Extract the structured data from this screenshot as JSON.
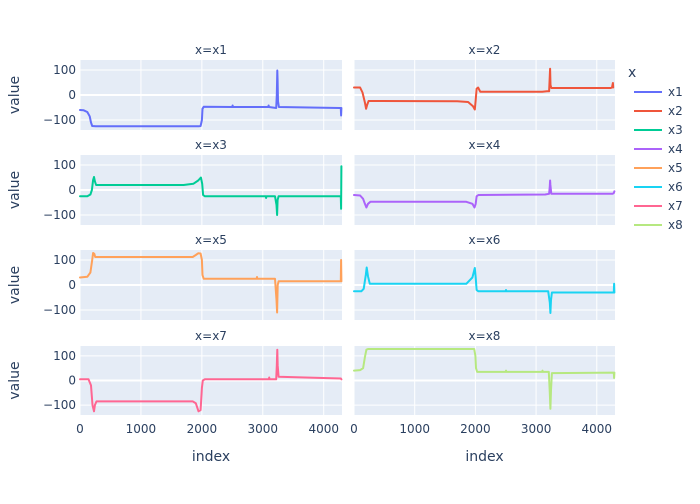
{
  "chart_data": {
    "type": "line",
    "layout": "faceted 4x2 small multiples",
    "x_label": "index",
    "y_label": "value",
    "x_range": [
      0,
      4300
    ],
    "y_range": [
      -140,
      140
    ],
    "x_ticks": [
      0,
      1000,
      2000,
      3000,
      4000
    ],
    "x_tick_labels": [
      "0",
      "1000",
      "2000",
      "3000",
      "4000"
    ],
    "y_ticks": [
      -100,
      0,
      100
    ],
    "y_tick_labels": [
      "−100",
      "0",
      "100"
    ],
    "grid": true,
    "plot_background": "#E5ECF6",
    "legend": {
      "title": "x",
      "position": "right",
      "items": [
        "x1",
        "x2",
        "x3",
        "x4",
        "x5",
        "x6",
        "x7",
        "x8"
      ]
    },
    "series": [
      {
        "name": "x1",
        "facet_title": "x=x1",
        "color": "#636EFA",
        "points": [
          [
            0,
            -60
          ],
          [
            60,
            -61
          ],
          [
            120,
            -68
          ],
          [
            160,
            -85
          ],
          [
            180,
            -110
          ],
          [
            200,
            -124
          ],
          [
            260,
            -125
          ],
          [
            1950,
            -125
          ],
          [
            1980,
            -124
          ],
          [
            2000,
            -100
          ],
          [
            2010,
            -55
          ],
          [
            2030,
            -47
          ],
          [
            2500,
            -48
          ],
          [
            2505,
            -42
          ],
          [
            2510,
            -48
          ],
          [
            3090,
            -48
          ],
          [
            3095,
            -42
          ],
          [
            3100,
            -48
          ],
          [
            3220,
            -52
          ],
          [
            3230,
            0
          ],
          [
            3238,
            98
          ],
          [
            3243,
            60
          ],
          [
            3250,
            -25
          ],
          [
            3265,
            -48
          ],
          [
            4260,
            -52
          ],
          [
            4280,
            -52
          ],
          [
            4285,
            -82
          ],
          [
            4290,
            -52
          ]
        ]
      },
      {
        "name": "x2",
        "facet_title": "x=x2",
        "color": "#EF553B",
        "points": [
          [
            0,
            30
          ],
          [
            100,
            30
          ],
          [
            140,
            10
          ],
          [
            180,
            -30
          ],
          [
            200,
            -55
          ],
          [
            215,
            -40
          ],
          [
            240,
            -24
          ],
          [
            1700,
            -25
          ],
          [
            1880,
            -28
          ],
          [
            1960,
            -45
          ],
          [
            1990,
            -58
          ],
          [
            2005,
            -20
          ],
          [
            2020,
            25
          ],
          [
            2045,
            30
          ],
          [
            2080,
            13
          ],
          [
            3100,
            13
          ],
          [
            3180,
            15
          ],
          [
            3215,
            15
          ],
          [
            3222,
            60
          ],
          [
            3230,
            105
          ],
          [
            3237,
            40
          ],
          [
            3250,
            28
          ],
          [
            4230,
            28
          ],
          [
            4250,
            30
          ],
          [
            4265,
            48
          ],
          [
            4270,
            30
          ]
        ]
      },
      {
        "name": "x3",
        "facet_title": "x=x3",
        "color": "#00CC96",
        "points": [
          [
            0,
            -25
          ],
          [
            120,
            -25
          ],
          [
            170,
            -18
          ],
          [
            195,
            0
          ],
          [
            215,
            40
          ],
          [
            230,
            52
          ],
          [
            245,
            35
          ],
          [
            265,
            20
          ],
          [
            1700,
            20
          ],
          [
            1860,
            25
          ],
          [
            1940,
            38
          ],
          [
            1985,
            50
          ],
          [
            2005,
            25
          ],
          [
            2020,
            -20
          ],
          [
            2050,
            -25
          ],
          [
            3050,
            -25
          ],
          [
            3055,
            -32
          ],
          [
            3060,
            -25
          ],
          [
            3200,
            -25
          ],
          [
            3225,
            -60
          ],
          [
            3235,
            -100
          ],
          [
            3243,
            -40
          ],
          [
            3260,
            -25
          ],
          [
            4280,
            -25
          ],
          [
            4285,
            -75
          ],
          [
            4290,
            95
          ]
        ]
      },
      {
        "name": "x4",
        "facet_title": "x=x4",
        "color": "#AB63FA",
        "points": [
          [
            0,
            -20
          ],
          [
            100,
            -22
          ],
          [
            150,
            -35
          ],
          [
            180,
            -55
          ],
          [
            205,
            -70
          ],
          [
            230,
            -55
          ],
          [
            270,
            -47
          ],
          [
            1850,
            -47
          ],
          [
            1950,
            -55
          ],
          [
            1985,
            -70
          ],
          [
            2005,
            -55
          ],
          [
            2020,
            -25
          ],
          [
            2050,
            -20
          ],
          [
            3150,
            -18
          ],
          [
            3215,
            -15
          ],
          [
            3225,
            15
          ],
          [
            3230,
            38
          ],
          [
            3236,
            20
          ],
          [
            3250,
            -15
          ],
          [
            4260,
            -15
          ],
          [
            4280,
            -12
          ],
          [
            4290,
            -5
          ]
        ]
      },
      {
        "name": "x5",
        "facet_title": "x=x5",
        "color": "#FFA15A",
        "points": [
          [
            0,
            30
          ],
          [
            120,
            33
          ],
          [
            170,
            50
          ],
          [
            200,
            100
          ],
          [
            215,
            128
          ],
          [
            235,
            125
          ],
          [
            250,
            112
          ],
          [
            1850,
            112
          ],
          [
            1900,
            120
          ],
          [
            1940,
            127
          ],
          [
            1980,
            126
          ],
          [
            2000,
            100
          ],
          [
            2010,
            40
          ],
          [
            2030,
            25
          ],
          [
            2900,
            25
          ],
          [
            2905,
            32
          ],
          [
            2910,
            25
          ],
          [
            3200,
            25
          ],
          [
            3225,
            -60
          ],
          [
            3235,
            -110
          ],
          [
            3245,
            0
          ],
          [
            3260,
            15
          ],
          [
            4280,
            15
          ],
          [
            4285,
            100
          ],
          [
            4290,
            15
          ]
        ]
      },
      {
        "name": "x6",
        "facet_title": "x=x6",
        "color": "#19D3F3",
        "points": [
          [
            0,
            -25
          ],
          [
            120,
            -25
          ],
          [
            160,
            -15
          ],
          [
            195,
            40
          ],
          [
            210,
            70
          ],
          [
            230,
            35
          ],
          [
            260,
            5
          ],
          [
            1850,
            5
          ],
          [
            1950,
            30
          ],
          [
            1990,
            68
          ],
          [
            2005,
            30
          ],
          [
            2020,
            -20
          ],
          [
            2050,
            -25
          ],
          [
            2500,
            -25
          ],
          [
            2505,
            -20
          ],
          [
            2510,
            -25
          ],
          [
            3200,
            -25
          ],
          [
            3225,
            -70
          ],
          [
            3235,
            -112
          ],
          [
            3245,
            -60
          ],
          [
            3260,
            -30
          ],
          [
            4280,
            -30
          ],
          [
            4285,
            5
          ],
          [
            4290,
            -30
          ]
        ]
      },
      {
        "name": "x7",
        "facet_title": "x=x7",
        "color": "#FF6692",
        "points": [
          [
            0,
            5
          ],
          [
            140,
            5
          ],
          [
            180,
            -20
          ],
          [
            205,
            -100
          ],
          [
            230,
            -125
          ],
          [
            245,
            -100
          ],
          [
            270,
            -85
          ],
          [
            1850,
            -85
          ],
          [
            1900,
            -92
          ],
          [
            1945,
            -125
          ],
          [
            1980,
            -120
          ],
          [
            2000,
            -30
          ],
          [
            2015,
            0
          ],
          [
            2050,
            5
          ],
          [
            3100,
            5
          ],
          [
            3105,
            12
          ],
          [
            3110,
            5
          ],
          [
            3220,
            5
          ],
          [
            3230,
            60
          ],
          [
            3238,
            125
          ],
          [
            3245,
            60
          ],
          [
            3260,
            15
          ],
          [
            4280,
            8
          ],
          [
            4290,
            5
          ]
        ]
      },
      {
        "name": "x8",
        "facet_title": "x=x8",
        "color": "#B6E880",
        "points": [
          [
            0,
            40
          ],
          [
            100,
            42
          ],
          [
            150,
            50
          ],
          [
            180,
            95
          ],
          [
            205,
            125
          ],
          [
            230,
            128
          ],
          [
            1980,
            128
          ],
          [
            2000,
            100
          ],
          [
            2010,
            50
          ],
          [
            2030,
            35
          ],
          [
            2500,
            35
          ],
          [
            2505,
            40
          ],
          [
            2510,
            35
          ],
          [
            3100,
            35
          ],
          [
            3105,
            40
          ],
          [
            3110,
            35
          ],
          [
            3210,
            35
          ],
          [
            3225,
            -50
          ],
          [
            3235,
            -115
          ],
          [
            3245,
            -40
          ],
          [
            3260,
            30
          ],
          [
            4280,
            32
          ],
          [
            4285,
            10
          ],
          [
            4290,
            32
          ]
        ]
      }
    ]
  }
}
